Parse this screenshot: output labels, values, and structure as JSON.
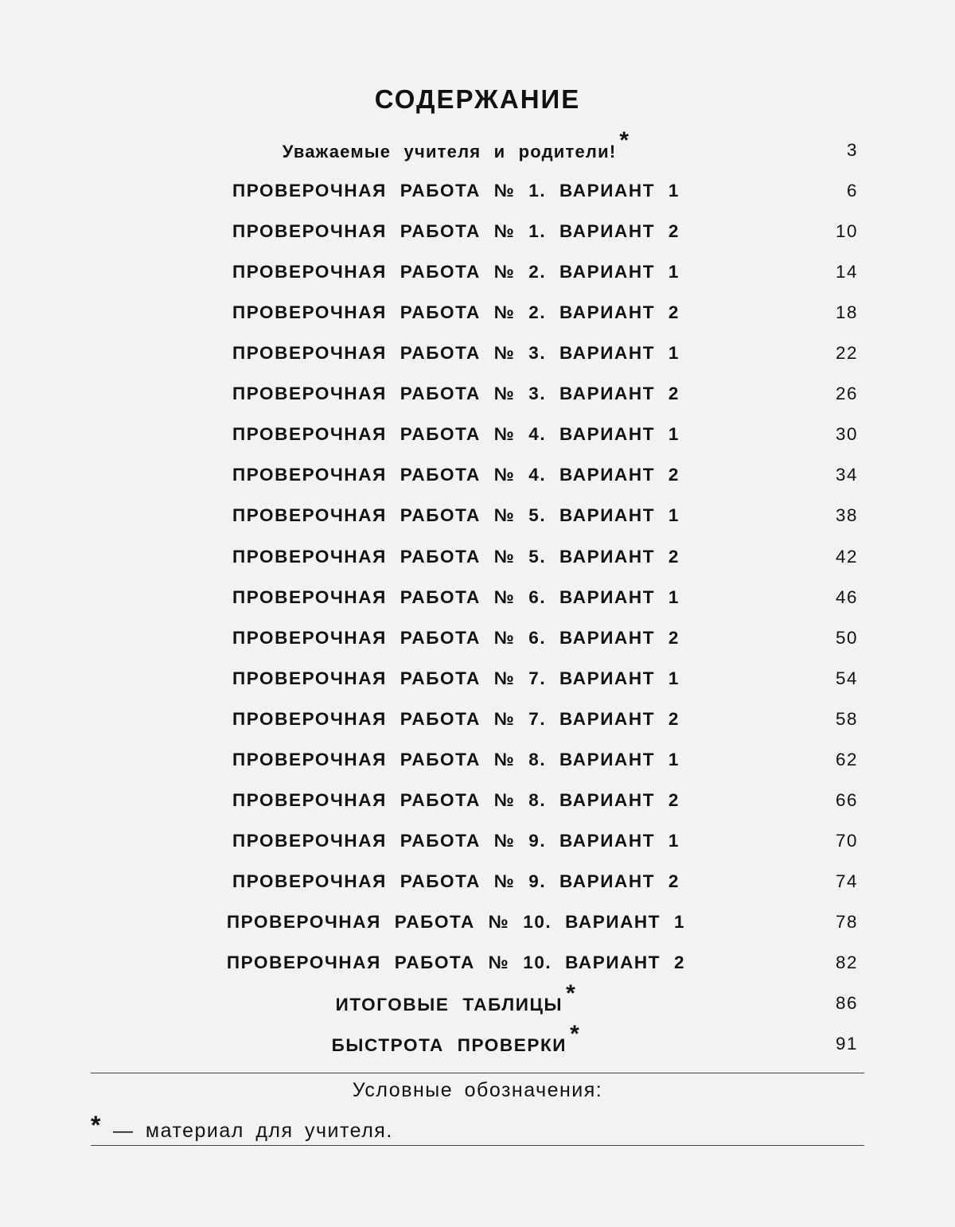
{
  "title": "СОДЕРЖАНИЕ",
  "marker": "*",
  "toc": [
    {
      "label": "Уважаемые учителя и родители!",
      "page": "3",
      "teacher_material": true,
      "style": "mixed"
    },
    {
      "label": "ПРОВЕРОЧНАЯ РАБОТА № 1. ВАРИАНТ 1",
      "page": "6"
    },
    {
      "label": "ПРОВЕРОЧНАЯ РАБОТА № 1. ВАРИАНТ 2",
      "page": "10"
    },
    {
      "label": "ПРОВЕРОЧНАЯ РАБОТА № 2. ВАРИАНТ 1",
      "page": "14"
    },
    {
      "label": "ПРОВЕРОЧНАЯ РАБОТА № 2. ВАРИАНТ 2",
      "page": "18"
    },
    {
      "label": "ПРОВЕРОЧНАЯ РАБОТА № 3. ВАРИАНТ 1",
      "page": "22"
    },
    {
      "label": "ПРОВЕРОЧНАЯ РАБОТА № 3. ВАРИАНТ 2",
      "page": "26"
    },
    {
      "label": "ПРОВЕРОЧНАЯ РАБОТА № 4. ВАРИАНТ 1",
      "page": "30"
    },
    {
      "label": "ПРОВЕРОЧНАЯ РАБОТА № 4. ВАРИАНТ 2",
      "page": "34"
    },
    {
      "label": "ПРОВЕРОЧНАЯ РАБОТА № 5. ВАРИАНТ 1",
      "page": "38"
    },
    {
      "label": "ПРОВЕРОЧНАЯ РАБОТА № 5. ВАРИАНТ 2",
      "page": "42"
    },
    {
      "label": "ПРОВЕРОЧНАЯ РАБОТА № 6. ВАРИАНТ 1",
      "page": "46"
    },
    {
      "label": "ПРОВЕРОЧНАЯ РАБОТА № 6. ВАРИАНТ 2",
      "page": "50"
    },
    {
      "label": "ПРОВЕРОЧНАЯ РАБОТА № 7. ВАРИАНТ 1",
      "page": "54"
    },
    {
      "label": "ПРОВЕРОЧНАЯ РАБОТА № 7. ВАРИАНТ 2",
      "page": "58"
    },
    {
      "label": "ПРОВЕРОЧНАЯ РАБОТА № 8. ВАРИАНТ 1",
      "page": "62"
    },
    {
      "label": "ПРОВЕРОЧНАЯ РАБОТА № 8. ВАРИАНТ 2",
      "page": "66"
    },
    {
      "label": "ПРОВЕРОЧНАЯ РАБОТА № 9. ВАРИАНТ 1",
      "page": "70"
    },
    {
      "label": "ПРОВЕРОЧНАЯ РАБОТА № 9. ВАРИАНТ 2",
      "page": "74"
    },
    {
      "label": "ПРОВЕРОЧНАЯ РАБОТА № 10. ВАРИАНТ 1",
      "page": "78"
    },
    {
      "label": "ПРОВЕРОЧНАЯ РАБОТА № 10. ВАРИАНТ 2",
      "page": "82"
    },
    {
      "label": "ИТОГОВЫЕ ТАБЛИЦЫ",
      "page": "86",
      "teacher_material": true
    },
    {
      "label": "БЫСТРОТА ПРОВЕРКИ",
      "page": "91",
      "teacher_material": true
    }
  ],
  "legend": {
    "title": "Условные обозначения:",
    "symbol": "*",
    "description": "— материал для учителя."
  }
}
